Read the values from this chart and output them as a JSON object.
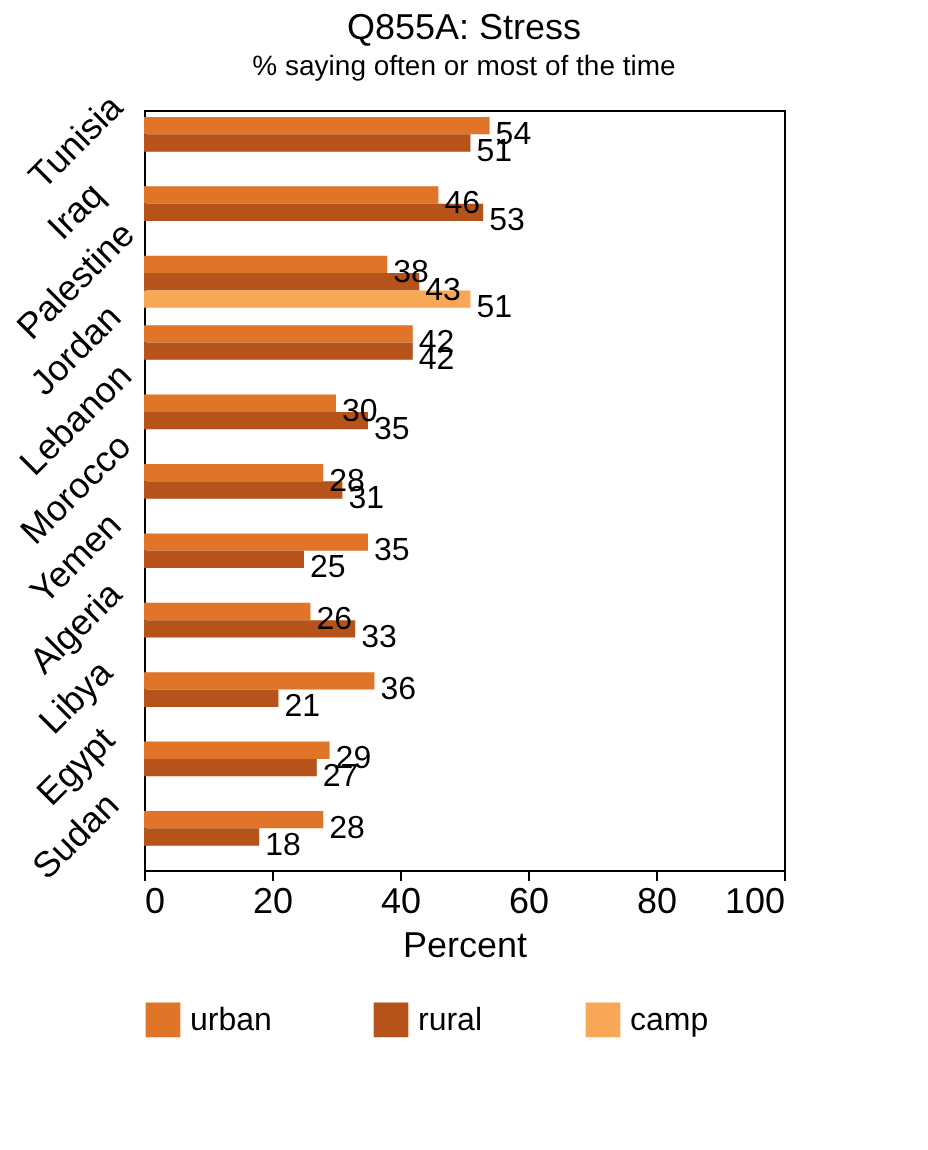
{
  "chart_data": {
    "type": "bar",
    "orientation": "horizontal",
    "title": "Q855A: Stress",
    "subtitle": "% saying often or most of the time",
    "xlabel": "Percent",
    "categories": [
      "Tunisia",
      "Iraq",
      "Palestine",
      "Jordan",
      "Lebanon",
      "Morocco",
      "Yemen",
      "Algeria",
      "Libya",
      "Egypt",
      "Sudan"
    ],
    "series": [
      {
        "name": "urban",
        "color": "#e07428",
        "values": [
          54,
          46,
          38,
          42,
          30,
          28,
          35,
          26,
          36,
          29,
          28
        ]
      },
      {
        "name": "rural",
        "color": "#b5531a",
        "values": [
          51,
          53,
          43,
          42,
          35,
          31,
          25,
          33,
          21,
          27,
          18
        ]
      },
      {
        "name": "camp",
        "color": "#f7a755",
        "values": [
          null,
          null,
          51,
          null,
          null,
          null,
          null,
          null,
          null,
          null,
          null
        ]
      }
    ],
    "xlim": [
      0,
      100
    ],
    "xticks": [
      0,
      20,
      40,
      60,
      80,
      100
    ],
    "grid": false,
    "legend": "bottom",
    "data_labels": true
  }
}
